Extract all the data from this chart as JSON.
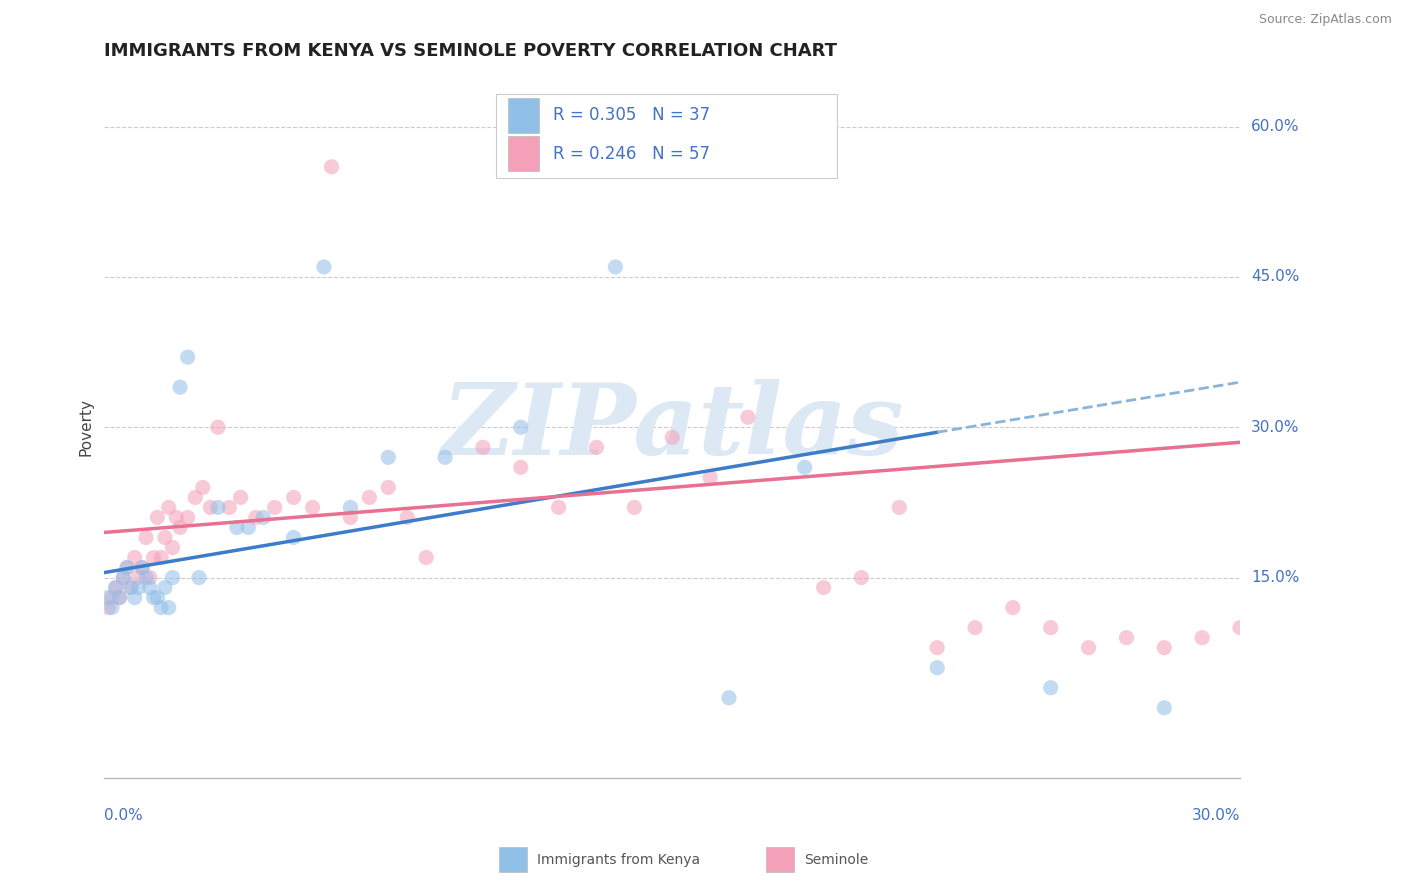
{
  "title": "IMMIGRANTS FROM KENYA VS SEMINOLE POVERTY CORRELATION CHART",
  "source": "Source: ZipAtlas.com",
  "ylabel": "Poverty",
  "xlim": [
    0.0,
    0.3
  ],
  "ylim": [
    -0.05,
    0.65
  ],
  "yticks": [
    0.15,
    0.3,
    0.45,
    0.6
  ],
  "ytick_labels": [
    "15.0%",
    "30.0%",
    "45.0%",
    "60.0%"
  ],
  "xtick_left": "0.0%",
  "xtick_right": "30.0%",
  "grid_color": "#cccccc",
  "background_color": "#ffffff",
  "color_kenya": "#90bfe8",
  "color_seminole": "#f4a0b8",
  "color_trendline_kenya_solid": "#3d7cc9",
  "color_trendline_kenya_dash": "#8ab4d8",
  "color_trendline_seminole": "#e87090",
  "color_axis_label": "#4472c4",
  "color_ylabel": "#444444",
  "watermark_text": "ZIPatlas",
  "watermark_color": "#dde8f5",
  "legend_r_kenya": "R = 0.305",
  "legend_n_kenya": "N = 37",
  "legend_r_seminole": "R = 0.246",
  "legend_n_seminole": "N = 57",
  "legend_label_kenya": "Immigrants from Kenya",
  "legend_label_seminole": "Seminole",
  "kenya_x": [
    0.001,
    0.002,
    0.003,
    0.004,
    0.005,
    0.006,
    0.007,
    0.008,
    0.009,
    0.01,
    0.011,
    0.012,
    0.013,
    0.014,
    0.015,
    0.016,
    0.017,
    0.018,
    0.02,
    0.022,
    0.025,
    0.03,
    0.035,
    0.038,
    0.042,
    0.05,
    0.058,
    0.065,
    0.075,
    0.09,
    0.11,
    0.135,
    0.165,
    0.185,
    0.22,
    0.25,
    0.28
  ],
  "kenya_y": [
    0.13,
    0.12,
    0.14,
    0.13,
    0.15,
    0.16,
    0.14,
    0.13,
    0.14,
    0.16,
    0.15,
    0.14,
    0.13,
    0.13,
    0.12,
    0.14,
    0.12,
    0.15,
    0.34,
    0.37,
    0.15,
    0.22,
    0.2,
    0.2,
    0.21,
    0.19,
    0.46,
    0.22,
    0.27,
    0.27,
    0.3,
    0.46,
    0.03,
    0.26,
    0.06,
    0.04,
    0.02
  ],
  "seminole_x": [
    0.001,
    0.002,
    0.003,
    0.004,
    0.005,
    0.006,
    0.007,
    0.008,
    0.009,
    0.01,
    0.011,
    0.012,
    0.013,
    0.014,
    0.015,
    0.016,
    0.017,
    0.018,
    0.019,
    0.02,
    0.022,
    0.024,
    0.026,
    0.028,
    0.03,
    0.033,
    0.036,
    0.04,
    0.045,
    0.05,
    0.055,
    0.06,
    0.065,
    0.07,
    0.075,
    0.08,
    0.085,
    0.1,
    0.11,
    0.12,
    0.13,
    0.14,
    0.15,
    0.16,
    0.17,
    0.19,
    0.2,
    0.21,
    0.22,
    0.23,
    0.24,
    0.25,
    0.26,
    0.27,
    0.28,
    0.29,
    0.3
  ],
  "seminole_y": [
    0.12,
    0.13,
    0.14,
    0.13,
    0.15,
    0.16,
    0.14,
    0.17,
    0.15,
    0.16,
    0.19,
    0.15,
    0.17,
    0.21,
    0.17,
    0.19,
    0.22,
    0.18,
    0.21,
    0.2,
    0.21,
    0.23,
    0.24,
    0.22,
    0.3,
    0.22,
    0.23,
    0.21,
    0.22,
    0.23,
    0.22,
    0.56,
    0.21,
    0.23,
    0.24,
    0.21,
    0.17,
    0.28,
    0.26,
    0.22,
    0.28,
    0.22,
    0.29,
    0.25,
    0.31,
    0.14,
    0.15,
    0.22,
    0.08,
    0.1,
    0.12,
    0.1,
    0.08,
    0.09,
    0.08,
    0.09,
    0.1
  ],
  "trendline_kenya_x1": 0.0,
  "trendline_kenya_x_break": 0.22,
  "trendline_kenya_x2": 0.3,
  "trendline_kenya_y1": 0.155,
  "trendline_kenya_y_break": 0.295,
  "trendline_kenya_y2": 0.345,
  "trendline_seminole_x1": 0.0,
  "trendline_seminole_x2": 0.3,
  "trendline_seminole_y1": 0.195,
  "trendline_seminole_y2": 0.285,
  "title_fontsize": 13,
  "tick_fontsize": 11,
  "legend_fontsize": 12,
  "ylabel_fontsize": 11,
  "dot_size": 120,
  "dot_alpha": 0.55
}
